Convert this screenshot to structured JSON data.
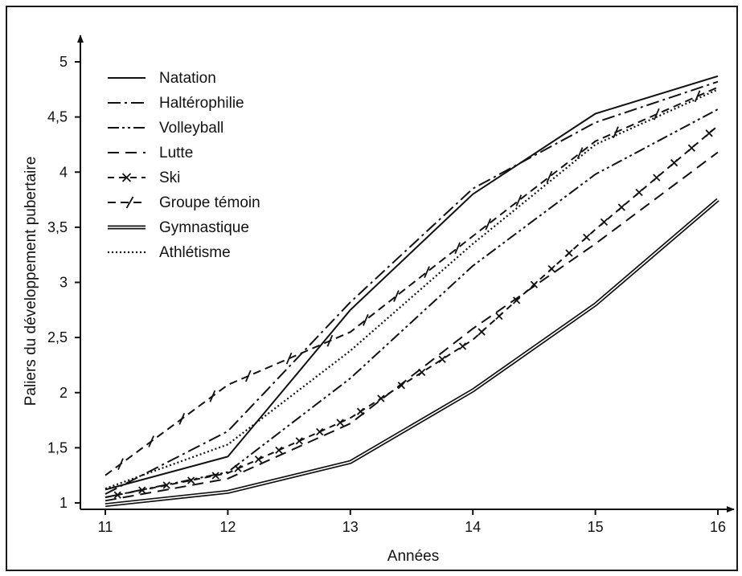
{
  "chart_data": {
    "type": "line",
    "title": "",
    "xlabel": "Années",
    "ylabel": "Paliers du développement pubertaire",
    "x": [
      11,
      12,
      13,
      14,
      15,
      16
    ],
    "x_ticks": [
      "11",
      "12",
      "13",
      "14",
      "15",
      "16"
    ],
    "y_ticks": [
      "1",
      "1,5",
      "2",
      "2,5",
      "3",
      "3,5",
      "4",
      "4,5",
      "5"
    ],
    "y_tick_values": [
      1,
      1.5,
      2,
      2.5,
      3,
      3.5,
      4,
      4.5,
      5
    ],
    "xlim": [
      11,
      16
    ],
    "ylim": [
      1,
      5
    ],
    "grid": false,
    "legend_position": "top-left",
    "series": [
      {
        "name": "Natation",
        "style": "solid",
        "values": [
          1.12,
          1.42,
          2.75,
          3.8,
          4.53,
          4.87
        ]
      },
      {
        "name": "Haltérophilie",
        "style": "dashdot",
        "values": [
          1.08,
          1.65,
          2.82,
          3.85,
          4.45,
          4.82
        ]
      },
      {
        "name": "Volleyball",
        "style": "dashdotdot",
        "values": [
          1.05,
          1.28,
          2.13,
          3.15,
          3.98,
          4.57
        ]
      },
      {
        "name": "Lutte",
        "style": "dashed",
        "values": [
          1.02,
          1.22,
          1.72,
          2.58,
          3.35,
          4.18
        ]
      },
      {
        "name": "Ski",
        "style": "cross",
        "values": [
          1.05,
          1.27,
          1.77,
          2.48,
          3.48,
          4.42
        ]
      },
      {
        "name": "Groupe témoin",
        "style": "slash",
        "values": [
          1.25,
          2.07,
          2.55,
          3.42,
          4.28,
          4.77
        ]
      },
      {
        "name": "Gymnastique",
        "style": "double",
        "values": [
          0.98,
          1.1,
          1.37,
          2.02,
          2.8,
          3.75
        ]
      },
      {
        "name": "Athlétisme",
        "style": "dotted",
        "values": [
          1.13,
          1.53,
          2.38,
          3.35,
          4.25,
          4.75
        ]
      }
    ]
  }
}
